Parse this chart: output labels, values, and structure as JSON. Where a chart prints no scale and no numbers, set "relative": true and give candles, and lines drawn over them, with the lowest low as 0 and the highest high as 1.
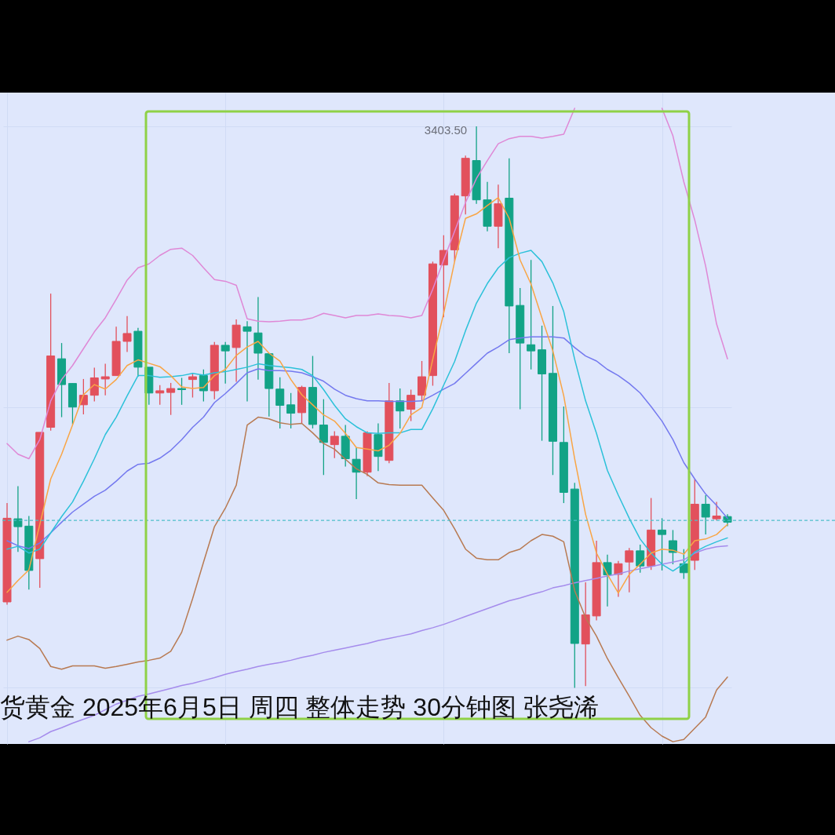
{
  "chart_data": {
    "type": "candlestick",
    "relative": true,
    "grid": true,
    "ylim": [
      -0.1,
      1.06
    ],
    "categories": [
      null,
      null,
      null,
      null,
      null,
      null,
      null,
      null,
      null,
      null,
      null,
      null,
      null,
      null,
      null,
      null,
      null,
      null,
      null,
      null,
      null,
      null,
      null,
      null,
      null,
      null,
      null,
      null,
      null,
      null,
      null,
      null,
      null,
      null,
      null,
      null,
      null,
      null,
      null,
      null,
      null,
      null,
      null,
      null,
      null,
      null,
      null,
      null,
      null,
      null,
      null,
      null,
      null,
      null,
      null,
      null,
      null,
      null,
      null,
      null,
      null,
      null,
      null,
      null,
      null,
      null,
      null
    ],
    "ohlc": [
      [
        0.153,
        0.329,
        0.148,
        0.302
      ],
      [
        0.301,
        0.359,
        0.242,
        0.287
      ],
      [
        0.288,
        0.306,
        0.175,
        0.209
      ],
      [
        0.23,
        0.455,
        0.178,
        0.455
      ],
      [
        0.464,
        0.702,
        0.458,
        0.591
      ],
      [
        0.586,
        0.614,
        0.482,
        0.54
      ],
      [
        0.542,
        0.542,
        0.469,
        0.5
      ],
      [
        0.504,
        0.55,
        0.487,
        0.521
      ],
      [
        0.521,
        0.57,
        0.51,
        0.552
      ],
      [
        0.55,
        0.577,
        0.521,
        0.554
      ],
      [
        0.556,
        0.643,
        0.556,
        0.617
      ],
      [
        0.617,
        0.662,
        0.598,
        0.631
      ],
      [
        0.635,
        0.641,
        0.554,
        0.571
      ],
      [
        0.571,
        0.571,
        0.504,
        0.525
      ],
      [
        0.525,
        0.539,
        0.504,
        0.529
      ],
      [
        0.526,
        0.543,
        0.486,
        0.533
      ],
      [
        0.533,
        0.552,
        0.504,
        0.531
      ],
      [
        0.549,
        0.56,
        0.517,
        0.554
      ],
      [
        0.556,
        0.567,
        0.51,
        0.529
      ],
      [
        0.529,
        0.616,
        0.514,
        0.61
      ],
      [
        0.61,
        0.616,
        0.542,
        0.6
      ],
      [
        0.606,
        0.656,
        0.545,
        0.646
      ],
      [
        0.643,
        0.653,
        0.51,
        0.635
      ],
      [
        0.632,
        0.696,
        0.549,
        0.596
      ],
      [
        0.595,
        0.595,
        0.483,
        0.533
      ],
      [
        0.532,
        0.553,
        0.462,
        0.503
      ],
      [
        0.504,
        0.525,
        0.462,
        0.489
      ],
      [
        0.49,
        0.538,
        0.471,
        0.535
      ],
      [
        0.535,
        0.591,
        0.462,
        0.469
      ],
      [
        0.468,
        0.514,
        0.379,
        0.437
      ],
      [
        0.433,
        0.457,
        0.409,
        0.448
      ],
      [
        0.448,
        0.468,
        0.394,
        0.408
      ],
      [
        0.407,
        0.428,
        0.336,
        0.384
      ],
      [
        0.384,
        0.457,
        0.377,
        0.454
      ],
      [
        0.451,
        0.471,
        0.386,
        0.412
      ],
      [
        0.405,
        0.543,
        0.4,
        0.511
      ],
      [
        0.511,
        0.533,
        0.462,
        0.493
      ],
      [
        0.496,
        0.531,
        0.475,
        0.521
      ],
      [
        0.521,
        0.582,
        0.511,
        0.554
      ],
      [
        0.556,
        0.759,
        0.538,
        0.755
      ],
      [
        0.753,
        0.806,
        0.66,
        0.779
      ],
      [
        0.78,
        0.88,
        0.759,
        0.876
      ],
      [
        0.876,
        0.948,
        0.843,
        0.943
      ],
      [
        0.939,
        1.0,
        0.862,
        0.869
      ],
      [
        0.869,
        0.901,
        0.813,
        0.822
      ],
      [
        0.822,
        0.896,
        0.783,
        0.862
      ],
      [
        0.872,
        0.943,
        0.596,
        0.68
      ],
      [
        0.681,
        0.712,
        0.496,
        0.614
      ],
      [
        0.611,
        0.762,
        0.567,
        0.6
      ],
      [
        0.602,
        0.645,
        0.44,
        0.559
      ],
      [
        0.56,
        0.68,
        0.379,
        0.439
      ],
      [
        0.437,
        0.501,
        0.329,
        0.348
      ],
      [
        0.354,
        0.365,
        0.0,
        0.079
      ],
      [
        0.078,
        0.188,
        0.003,
        0.13
      ],
      [
        0.128,
        0.262,
        0.12,
        0.223
      ],
      [
        0.223,
        0.237,
        0.145,
        0.201
      ],
      [
        0.202,
        0.226,
        0.162,
        0.221
      ],
      [
        0.224,
        0.249,
        0.17,
        0.244
      ],
      [
        0.244,
        0.255,
        0.205,
        0.217
      ],
      [
        0.217,
        0.338,
        0.21,
        0.281
      ],
      [
        0.281,
        0.302,
        0.209,
        0.273
      ],
      [
        0.262,
        0.281,
        0.22,
        0.241
      ],
      [
        0.221,
        0.247,
        0.194,
        0.205
      ],
      [
        0.227,
        0.372,
        0.21,
        0.327
      ],
      [
        0.327,
        0.343,
        0.273,
        0.304
      ],
      [
        0.301,
        0.331,
        0.298,
        0.306
      ],
      [
        0.305,
        0.309,
        0.288,
        0.295
      ]
    ],
    "colors": [
      "#e2505c",
      "#12a386",
      "#12a386",
      "#e2505c",
      "#e2505c",
      "#12a386",
      "#12a386",
      "#e2505c",
      "#e2505c",
      "#e2505c",
      "#e2505c",
      "#e2505c",
      "#12a386",
      "#12a386",
      "#e2505c",
      "#e2505c",
      "#12a386",
      "#e2505c",
      "#12a386",
      "#e2505c",
      "#12a386",
      "#e2505c",
      "#12a386",
      "#12a386",
      "#12a386",
      "#12a386",
      "#12a386",
      "#e2505c",
      "#12a386",
      "#12a386",
      "#e2505c",
      "#12a386",
      "#12a386",
      "#e2505c",
      "#12a386",
      "#e2505c",
      "#12a386",
      "#e2505c",
      "#e2505c",
      "#e2505c",
      "#e2505c",
      "#e2505c",
      "#e2505c",
      "#12a386",
      "#12a386",
      "#e2505c",
      "#12a386",
      "#12a386",
      "#12a386",
      "#12a386",
      "#12a386",
      "#12a386",
      "#12a386",
      "#e2505c",
      "#e2505c",
      "#12a386",
      "#e2505c",
      "#e2505c",
      "#12a386",
      "#e2505c",
      "#12a386",
      "#12a386",
      "#12a386",
      "#e2505c",
      "#12a386",
      "#e2505c",
      "#12a386"
    ],
    "series": [
      {
        "type": "line",
        "color": "#a58cec",
        "values": [
          null,
          null,
          -0.096,
          -0.089,
          -0.078,
          -0.071,
          -0.063,
          -0.056,
          -0.049,
          -0.039,
          -0.029,
          -0.022,
          -0.015,
          -0.011,
          -0.006,
          -0.001,
          0.004,
          0.008,
          0.013,
          0.018,
          0.024,
          0.029,
          0.033,
          0.038,
          0.042,
          0.045,
          0.049,
          0.054,
          0.058,
          0.063,
          0.067,
          0.071,
          0.075,
          0.079,
          0.084,
          0.088,
          0.092,
          0.096,
          0.102,
          0.107,
          0.113,
          0.12,
          0.127,
          0.134,
          0.141,
          0.148,
          0.155,
          0.16,
          0.166,
          0.171,
          0.178,
          0.182,
          0.187,
          0.191,
          0.195,
          0.199,
          0.203,
          0.208,
          0.212,
          0.216,
          0.22,
          0.224,
          0.228,
          0.24,
          0.247,
          0.251,
          0.253
        ]
      },
      {
        "type": "line",
        "color": "#df88d6",
        "values": [
          0.435,
          0.416,
          0.408,
          0.442,
          0.511,
          0.549,
          0.574,
          0.604,
          0.634,
          0.659,
          0.692,
          0.726,
          0.748,
          0.755,
          0.77,
          0.781,
          0.783,
          0.77,
          0.748,
          0.727,
          0.724,
          0.717,
          0.657,
          0.653,
          0.652,
          0.653,
          0.655,
          0.655,
          0.659,
          0.667,
          0.663,
          0.659,
          0.663,
          0.663,
          0.666,
          0.663,
          0.662,
          0.659,
          0.663,
          0.71,
          0.762,
          0.813,
          0.864,
          0.907,
          0.939,
          0.969,
          0.978,
          0.982,
          0.982,
          0.979,
          0.982,
          0.986,
          1.032,
          null,
          null,
          null,
          null,
          null,
          null,
          null,
          1.032,
          0.983,
          0.901,
          0.833,
          0.751,
          0.648,
          0.586
        ]
      },
      {
        "type": "line",
        "color": "#b87a52",
        "values": [
          0.085,
          0.092,
          0.086,
          0.07,
          0.038,
          0.033,
          0.039,
          0.039,
          0.039,
          0.035,
          0.038,
          0.042,
          0.046,
          0.049,
          0.053,
          0.065,
          0.099,
          0.159,
          0.224,
          0.287,
          0.32,
          0.361,
          0.468,
          0.482,
          0.479,
          0.472,
          0.469,
          0.471,
          0.454,
          0.435,
          0.425,
          0.407,
          0.39,
          0.38,
          0.365,
          0.362,
          0.361,
          0.361,
          0.361,
          0.338,
          0.316,
          0.283,
          0.247,
          0.231,
          0.228,
          0.228,
          0.241,
          0.247,
          0.262,
          0.273,
          0.27,
          0.26,
          0.173,
          0.125,
          0.092,
          0.052,
          0.018,
          -0.015,
          -0.049,
          -0.071,
          -0.086,
          -0.096,
          -0.092,
          -0.072,
          -0.052,
          -0.004,
          0.019
        ]
      },
      {
        "type": "line",
        "color": "#7479ef",
        "values": [
          0.262,
          0.253,
          0.248,
          0.258,
          0.276,
          0.295,
          0.313,
          0.327,
          0.341,
          0.352,
          0.368,
          0.386,
          0.398,
          0.4,
          0.409,
          0.423,
          0.442,
          0.464,
          0.482,
          0.508,
          0.524,
          0.542,
          0.561,
          0.568,
          0.565,
          0.565,
          0.564,
          0.561,
          0.554,
          0.546,
          0.532,
          0.521,
          0.515,
          0.511,
          0.511,
          0.51,
          0.51,
          0.51,
          0.511,
          0.521,
          0.532,
          0.542,
          0.56,
          0.578,
          0.596,
          0.607,
          0.62,
          0.623,
          0.625,
          0.625,
          0.625,
          0.623,
          0.606,
          0.591,
          0.582,
          0.567,
          0.556,
          0.542,
          0.525,
          0.501,
          0.475,
          0.442,
          0.401,
          0.372,
          0.345,
          0.325,
          0.302
        ]
      },
      {
        "type": "line",
        "color": "#2cc1d9",
        "values": [
          0.247,
          0.252,
          0.24,
          0.247,
          0.276,
          0.305,
          0.331,
          0.368,
          0.408,
          0.451,
          0.482,
          0.52,
          0.556,
          0.556,
          0.553,
          0.554,
          0.556,
          0.56,
          0.557,
          0.561,
          0.563,
          0.567,
          0.571,
          0.577,
          0.574,
          0.572,
          0.57,
          0.567,
          0.556,
          0.531,
          0.503,
          0.479,
          0.465,
          0.454,
          0.453,
          0.454,
          0.454,
          0.46,
          0.46,
          0.497,
          0.539,
          0.581,
          0.636,
          0.685,
          0.72,
          0.748,
          0.766,
          0.774,
          0.779,
          0.759,
          0.721,
          0.67,
          0.585,
          0.511,
          0.453,
          0.387,
          0.343,
          0.302,
          0.265,
          0.24,
          0.22,
          0.208,
          0.221,
          0.242,
          0.252,
          0.26,
          0.267
        ]
      },
      {
        "type": "line",
        "color": "#f9a545",
        "values": [
          0.17,
          0.191,
          0.21,
          0.291,
          0.372,
          0.416,
          0.468,
          0.522,
          0.54,
          0.532,
          0.549,
          0.574,
          0.584,
          0.578,
          0.572,
          0.556,
          0.536,
          0.533,
          0.535,
          0.556,
          0.567,
          0.592,
          0.607,
          0.617,
          0.596,
          0.582,
          0.549,
          0.522,
          0.504,
          0.486,
          0.475,
          0.453,
          0.428,
          0.425,
          0.422,
          0.432,
          0.453,
          0.486,
          0.499,
          0.585,
          0.667,
          0.759,
          0.836,
          0.844,
          0.859,
          0.873,
          0.836,
          0.762,
          0.719,
          0.659,
          0.6,
          0.52,
          0.408,
          0.309,
          0.24,
          0.202,
          0.169,
          0.202,
          0.22,
          0.24,
          0.247,
          0.245,
          0.238,
          0.262,
          0.265,
          0.273,
          0.291
        ]
      }
    ],
    "ref_lines": [
      {
        "axis": "y",
        "value": 0.298,
        "color": "#4fbfc9",
        "line_style": "dashed"
      }
    ],
    "annotations": [
      "3403.50",
      "货黄金  2025年6月5日 周四 整体走势 30分钟图 张尧浠"
    ]
  }
}
